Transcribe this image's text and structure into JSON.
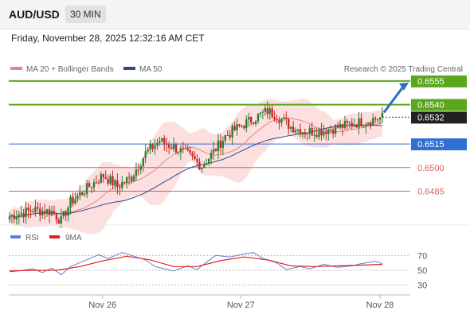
{
  "header": {
    "pair": "AUD/USD",
    "timeframe": "30 MIN",
    "datetime": "Friday, November 28, 2025 12:32:16 AM CET"
  },
  "legend": {
    "bollinger": "MA 20 + Bollinger Bands",
    "ma50": "MA 50",
    "credit": "Research © 2025 Trading Central"
  },
  "rsi_legend": {
    "rsi": "RSI",
    "ma9": "9MA"
  },
  "colors": {
    "bollinger": "#f08080",
    "ma50": "#2e4a8a",
    "candle_up": "#2e7d32",
    "candle_down": "#c62828",
    "resistance": "#5aa61c",
    "pivot": "#2f6fd6",
    "support": "#e05a5a",
    "rsi": "#5b7fd6",
    "rsi_ma": "#e02020"
  },
  "chart_data": [
    {
      "type": "candlestick",
      "title": "AUD/USD 30 MIN",
      "y_range": [
        0.6464,
        0.656
      ],
      "x_tick_labels": [
        "Nov 26",
        "Nov 27",
        "Nov 28"
      ],
      "current_price": "0.6532",
      "target_arrow": true,
      "levels": [
        {
          "label": "0.6555",
          "value": 0.6555,
          "kind": "resistance"
        },
        {
          "label": "0.6540",
          "value": 0.654,
          "kind": "resistance"
        },
        {
          "label": "0.6515",
          "value": 0.6515,
          "kind": "pivot"
        },
        {
          "label": "0.6500",
          "value": 0.65,
          "kind": "support"
        },
        {
          "label": "0.6485",
          "value": 0.6485,
          "kind": "support"
        }
      ],
      "close_anchors": [
        [
          0,
          0.6469
        ],
        [
          10,
          0.6473
        ],
        [
          18,
          0.6472
        ],
        [
          22,
          0.6466
        ],
        [
          26,
          0.6478
        ],
        [
          34,
          0.6488
        ],
        [
          40,
          0.6495
        ],
        [
          46,
          0.6488
        ],
        [
          52,
          0.6494
        ],
        [
          58,
          0.6509
        ],
        [
          64,
          0.6517
        ],
        [
          70,
          0.6513
        ],
        [
          76,
          0.6508
        ],
        [
          82,
          0.6501
        ],
        [
          86,
          0.6508
        ],
        [
          92,
          0.652
        ],
        [
          98,
          0.6526
        ],
        [
          104,
          0.6531
        ],
        [
          110,
          0.6536
        ],
        [
          114,
          0.6533
        ],
        [
          120,
          0.6526
        ],
        [
          126,
          0.6523
        ],
        [
          132,
          0.6523
        ],
        [
          138,
          0.6525
        ],
        [
          144,
          0.6527
        ],
        [
          150,
          0.6529
        ],
        [
          156,
          0.6531
        ],
        [
          159,
          0.6532
        ]
      ]
    },
    {
      "type": "line",
      "title": "RSI",
      "y_range": [
        20,
        80
      ],
      "y_tick_labels": [
        "70",
        "50",
        "30"
      ],
      "series": [
        {
          "name": "RSI",
          "x": [
            0,
            6,
            10,
            14,
            18,
            22,
            26,
            32,
            38,
            42,
            48,
            52,
            58,
            62,
            66,
            70,
            76,
            80,
            84,
            88,
            94,
            100,
            104,
            108,
            114,
            118,
            124,
            128,
            134,
            140,
            146,
            150,
            156,
            159
          ],
          "values": [
            48,
            50,
            52,
            47,
            53,
            44,
            55,
            63,
            71,
            66,
            74,
            70,
            64,
            55,
            52,
            49,
            56,
            51,
            61,
            70,
            68,
            72,
            74,
            66,
            60,
            51,
            55,
            52,
            58,
            54,
            56,
            59,
            62,
            59
          ]
        },
        {
          "name": "9MA",
          "x": [
            0,
            10,
            20,
            30,
            40,
            50,
            60,
            70,
            80,
            90,
            100,
            110,
            120,
            130,
            140,
            150,
            159
          ],
          "values": [
            49,
            50,
            50,
            55,
            63,
            69,
            64,
            55,
            55,
            63,
            68,
            64,
            56,
            55,
            56,
            57,
            58
          ]
        }
      ]
    }
  ]
}
